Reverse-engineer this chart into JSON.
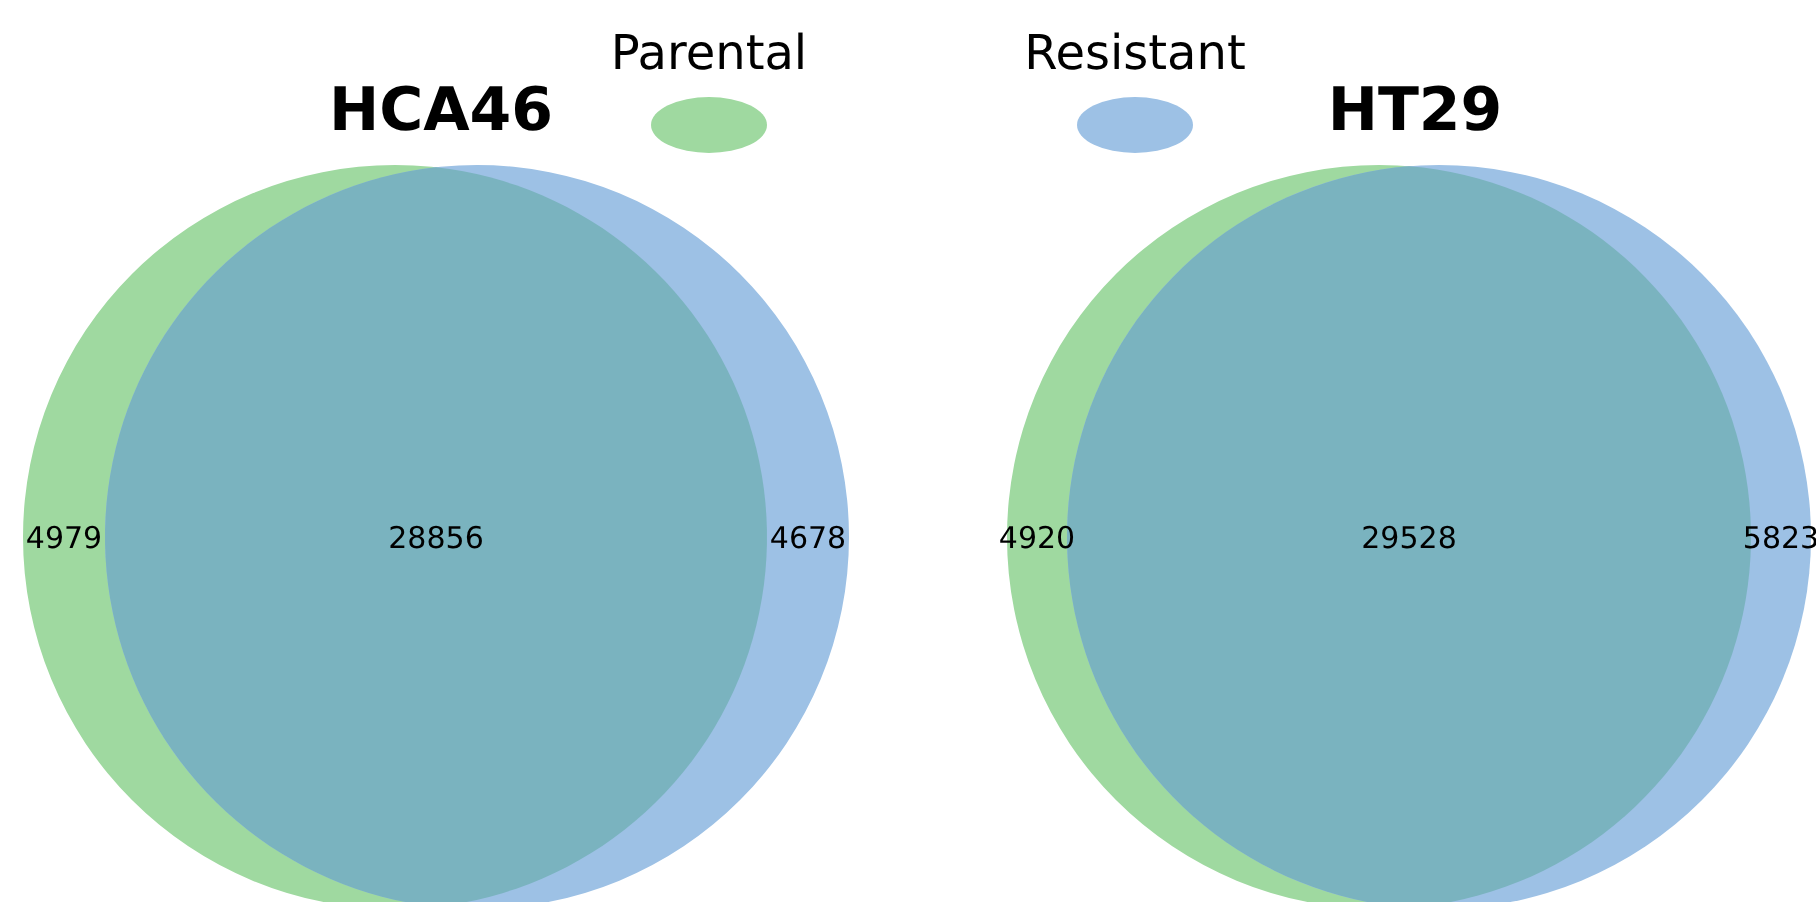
{
  "chart_data": [
    {
      "type": "other",
      "title": "HCA46",
      "categories": [
        null,
        null,
        null
      ],
      "values": [
        4979,
        28856,
        4678
      ],
      "colors": [
        "#9fd9a0",
        "#7ab3bf",
        "#9dc1e5"
      ],
      "data_labels": true,
      "annotations": [
        "Parental"
      ]
    },
    {
      "type": "other",
      "title": "HT29",
      "categories": [
        null,
        null,
        null
      ],
      "values": [
        4920,
        29528,
        5823
      ],
      "colors": [
        "#9fd9a0",
        "#7ab3bf",
        "#9dc1e5"
      ],
      "data_labels": true,
      "annotations": [
        "Resistant"
      ]
    }
  ]
}
